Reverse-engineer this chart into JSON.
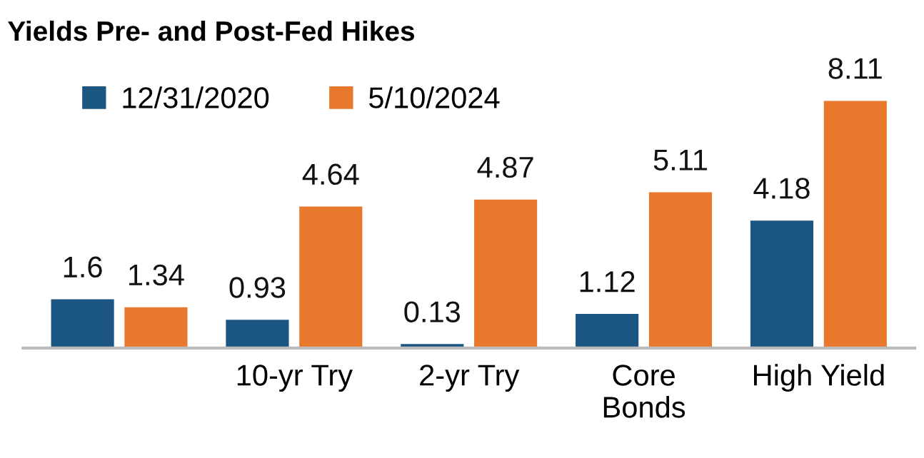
{
  "chart_data": {
    "type": "bar",
    "title": "Yields Pre- and Post-Fed Hikes",
    "categories": [
      null,
      "10-yr Try",
      "2-yr Try",
      "Core\nBonds",
      "High Yield"
    ],
    "series": [
      {
        "name": "12/31/2020",
        "color": "#1b5582",
        "values": [
          1.6,
          0.93,
          0.13,
          1.12,
          4.18
        ]
      },
      {
        "name": "5/10/2024",
        "color": "#e8792c",
        "values": [
          1.34,
          4.64,
          4.87,
          5.11,
          8.11
        ]
      }
    ],
    "data_labels": true,
    "legend": "top left",
    "grid": false
  }
}
